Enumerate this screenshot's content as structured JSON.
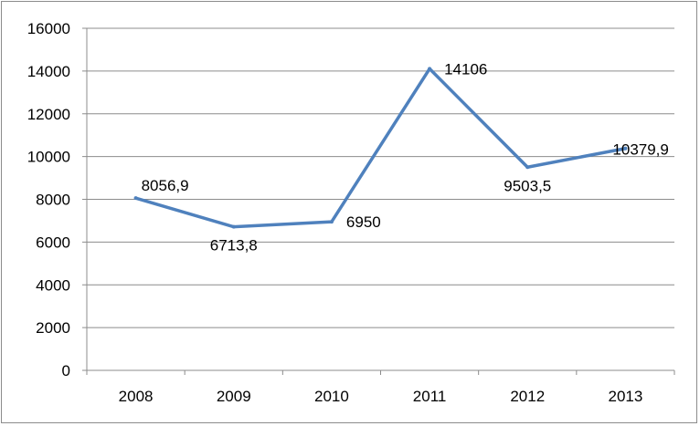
{
  "chart_data": {
    "type": "line",
    "title": "",
    "xlabel": "",
    "ylabel": "",
    "categories": [
      "2008",
      "2009",
      "2010",
      "2011",
      "2012",
      "2013"
    ],
    "series": [
      {
        "values": [
          8056.9,
          6713.8,
          6950,
          14106,
          9503.5,
          10379.9
        ],
        "labels": [
          "8056,9",
          "6713,8",
          "6950",
          "14106",
          "9503,5",
          "10379,9"
        ],
        "color": "#4f81bd"
      }
    ],
    "ylim": [
      0,
      16000
    ],
    "yticks": [
      "0",
      "2000",
      "4000",
      "6000",
      "8000",
      "10000",
      "12000",
      "14000",
      "16000"
    ],
    "grid": true,
    "legend": "none"
  }
}
